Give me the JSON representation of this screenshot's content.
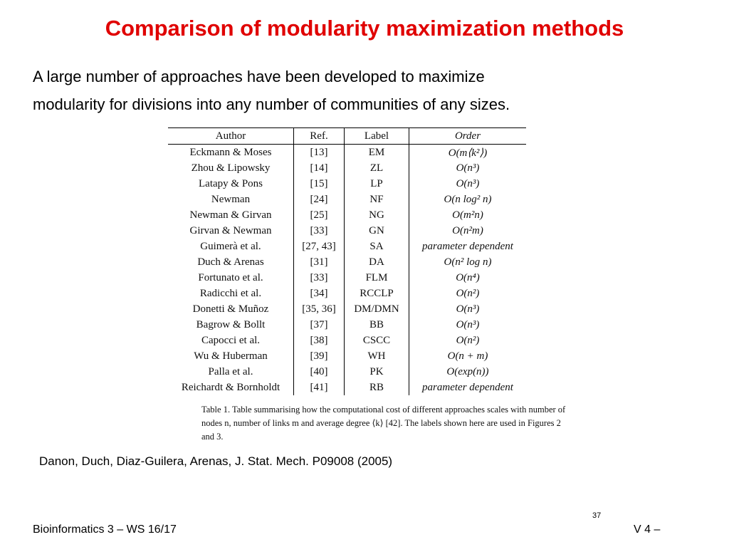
{
  "header": {
    "title": "Comparison of modularity maximization methods"
  },
  "intro": [
    "A large number of approaches have been developed to maximize",
    "modularity for divisions into any number of communities of any sizes."
  ],
  "table": {
    "columns": [
      "Author",
      "Ref.",
      "Label",
      "Order"
    ],
    "rows": [
      [
        "Eckmann & Moses",
        "[13]",
        "EM",
        "O(m⟨k²⟩)"
      ],
      [
        "Zhou & Lipowsky",
        "[14]",
        "ZL",
        "O(n³)"
      ],
      [
        "Latapy & Pons",
        "[15]",
        "LP",
        "O(n³)"
      ],
      [
        "Newman",
        "[24]",
        "NF",
        "O(n log² n)"
      ],
      [
        "Newman & Girvan",
        "[25]",
        "NG",
        "O(m²n)"
      ],
      [
        "Girvan & Newman",
        "[33]",
        "GN",
        "O(n²m)"
      ],
      [
        "Guimerà et al.",
        "[27, 43]",
        "SA",
        "parameter dependent"
      ],
      [
        "Duch & Arenas",
        "[31]",
        "DA",
        "O(n² log n)"
      ],
      [
        "Fortunato et al.",
        "[33]",
        "FLM",
        "O(n⁴)"
      ],
      [
        "Radicchi et al.",
        "[34]",
        "RCCLP",
        "O(n²)"
      ],
      [
        "Donetti & Muñoz",
        "[35, 36]",
        "DM/DMN",
        "O(n³)"
      ],
      [
        "Bagrow & Bollt",
        "[37]",
        "BB",
        "O(n³)"
      ],
      [
        "Capocci et al.",
        "[38]",
        "CSCC",
        "O(n²)"
      ],
      [
        "Wu & Huberman",
        "[39]",
        "WH",
        "O(n + m)"
      ],
      [
        "Palla et al.",
        "[40]",
        "PK",
        "O(exp(n))"
      ],
      [
        "Reichardt & Bornholdt",
        "[41]",
        "RB",
        "parameter dependent"
      ]
    ],
    "caption": "Table 1. Table summarising how the computational cost of different approaches scales with number of nodes n, number of links m and average degree ⟨k⟩ [42]. The labels shown here are used in Figures 2 and 3."
  },
  "citation": "Danon, Duch, Diaz-Guilera, Arenas, J. Stat. Mech. P09008 (2005)",
  "footer": {
    "course": "Bioinformatics 3 – WS 16/17",
    "page": "37",
    "lecture": "V 4 –"
  }
}
